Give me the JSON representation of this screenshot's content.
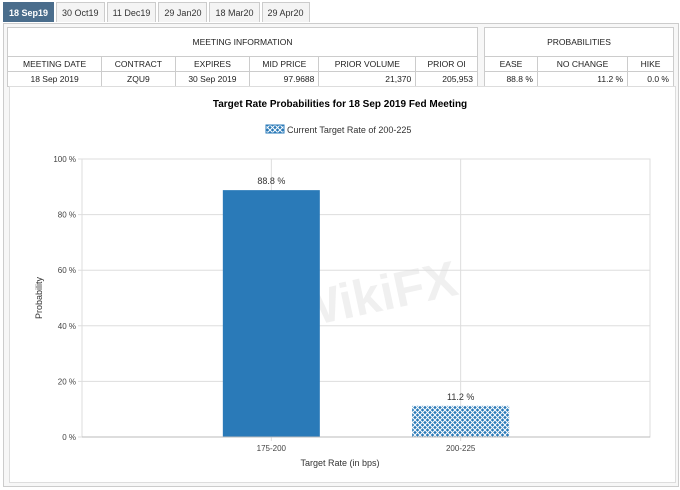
{
  "tabs": [
    "18 Sep19",
    "30 Oct19",
    "11 Dec19",
    "29 Jan20",
    "18 Mar20",
    "29 Apr20"
  ],
  "meeting": {
    "title": "MEETING INFORMATION",
    "headers": [
      "MEETING DATE",
      "CONTRACT",
      "EXPIRES",
      "MID PRICE",
      "PRIOR VOLUME",
      "PRIOR OI"
    ],
    "values": [
      "18 Sep 2019",
      "ZQU9",
      "30 Sep 2019",
      "97.9688",
      "21,370",
      "205,953"
    ]
  },
  "probabilities": {
    "title": "PROBABILITIES",
    "headers": [
      "EASE",
      "NO CHANGE",
      "HIKE"
    ],
    "values": [
      "88.8 %",
      "11.2 %",
      "0.0 %"
    ]
  },
  "watermark": "WikiFX",
  "chart_data": {
    "type": "bar",
    "title": "Target Rate Probabilities for 18 Sep 2019 Fed Meeting",
    "legend": "Current Target Rate of 200-225",
    "legend_position": "top",
    "categories": [
      "175-200",
      "200-225"
    ],
    "values": [
      88.8,
      11.2
    ],
    "data_labels": [
      "88.8 %",
      "11.2 %"
    ],
    "xlabel": "Target Rate (in bps)",
    "ylabel": "Probability",
    "ylim": [
      0,
      100
    ],
    "yticks": [
      "0 %",
      "20 %",
      "40 %",
      "60 %",
      "80 %",
      "100 %"
    ],
    "grid": true,
    "colors": {
      "bar": "#2a7ab8",
      "current": "#2a7ab8"
    },
    "current_category": "200-225"
  }
}
